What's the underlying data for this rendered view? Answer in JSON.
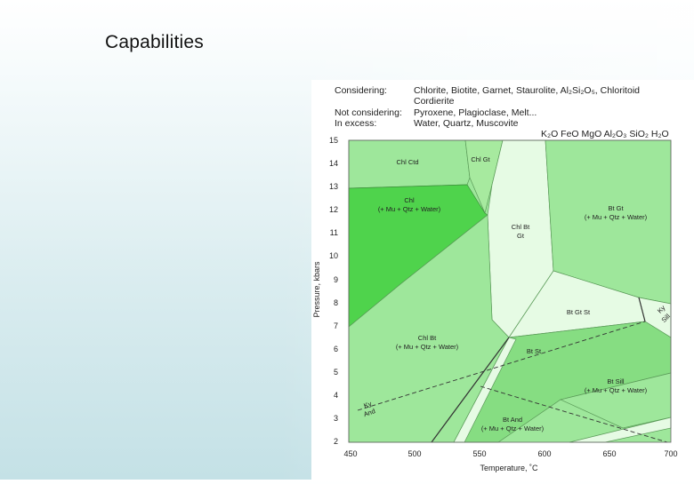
{
  "slide": {
    "title": "Capabilities"
  },
  "header": {
    "considering_label": "Considering:",
    "considering_line1": "Chlorite, Biotite, Garnet, Staurolite, Al₂Si₂O₅, Chloritoid",
    "considering_line2": "Cordierite",
    "not_considering_label": "Not considering:",
    "not_considering_value": "Pyroxene, Plagioclase, Melt...",
    "in_excess_label": "In excess:",
    "in_excess_value": "Water, Quartz, Muscovite",
    "system": "K₂O FeO MgO Al₂O₃ SiO₂ H₂O"
  },
  "axes": {
    "y_label": "Pressure, kbars",
    "x_label": "Temperature, ˚C",
    "y_ticks": [
      "15",
      "14",
      "13",
      "12",
      "11",
      "10",
      "9",
      "8",
      "7",
      "6",
      "5",
      "4",
      "3",
      "2"
    ],
    "x_ticks": [
      "450",
      "500",
      "550",
      "600",
      "650",
      "700"
    ]
  },
  "fields": {
    "chl_ctd": "Chl Ctd",
    "chl_gt": "Chl Gt",
    "chl_name": "Chl",
    "chl_assemblage": "(+ Mu + Qtz + Water)",
    "chl_bt_gt_1": "Chl Bt",
    "chl_bt_gt_2": "Gt",
    "bt_gt_name": "Bt Gt",
    "bt_gt_assemblage": "(+ Mu + Qtz + Water)",
    "bt_gt_st": "Bt Gt St",
    "ky_sill_1": "Ky",
    "ky_sill_2": "Sill",
    "chl_bt_name": "Chl Bt",
    "chl_bt_assemblage": "(+ Mu + Qtz + Water)",
    "bt_st": "Bt St",
    "bt_sill_name": "Bt Sill",
    "bt_sill_assemblage": "(+ Mu + Qtz + Water)",
    "ky_and_1": "Ky",
    "ky_and_2": "And",
    "bt_and_name": "Bt And",
    "bt_and_assemblage": "(+ Mu + Qtz + Water)"
  },
  "colors": {
    "light_green": "#9ee79b",
    "mid_green": "#86dd82",
    "bright_green": "#4fd34c",
    "pale_green": "#e6fbe4"
  }
}
